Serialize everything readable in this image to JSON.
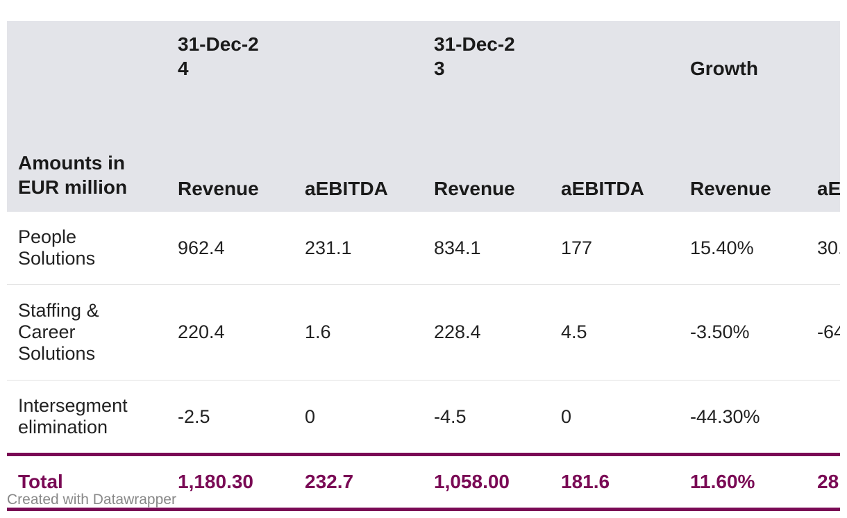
{
  "table": {
    "header": {
      "corner_label": "Amounts in EUR million",
      "groups": [
        "31-Dec-24",
        "31-Dec-23",
        "Growth"
      ],
      "columns": [
        "Revenue",
        "aEBITDA",
        "Revenue",
        "aEBITDA",
        "Revenue",
        "aE"
      ]
    },
    "rows": [
      {
        "label": "People Solutions",
        "cells": [
          "962.4",
          "231.1",
          "834.1",
          "177",
          "15.40%",
          "30."
        ]
      },
      {
        "label": "Staffing & Career Solutions",
        "cells": [
          "220.4",
          "1.6",
          "228.4",
          "4.5",
          "-3.50%",
          "-64"
        ]
      },
      {
        "label": "Intersegment elimination",
        "cells": [
          "-2.5",
          "0",
          "-4.5",
          "0",
          "-44.30%",
          ""
        ]
      }
    ],
    "total": {
      "label": "Total",
      "cells": [
        "1,180.30",
        "232.7",
        "1,058.00",
        "181.6",
        "11.60%",
        "28"
      ]
    }
  },
  "footer": {
    "credit": "Created with Datawrapper"
  },
  "colors": {
    "header_background": "#e3e4e9",
    "total_accent": "#7a0a55",
    "row_divider": "#e2e2e2",
    "credit_text": "#888888"
  },
  "chart_data": {
    "type": "table",
    "columns": [
      "Amounts in EUR million",
      "31-Dec-24 Revenue",
      "31-Dec-24 aEBITDA",
      "31-Dec-23 Revenue",
      "31-Dec-23 aEBITDA",
      "Growth Revenue",
      "Growth aE"
    ],
    "rows": [
      [
        "People Solutions",
        "962.4",
        "231.1",
        "834.1",
        "177",
        "15.40%",
        "30."
      ],
      [
        "Staffing & Career Solutions",
        "220.4",
        "1.6",
        "228.4",
        "4.5",
        "-3.50%",
        "-64"
      ],
      [
        "Intersegment elimination",
        "-2.5",
        "0",
        "-4.5",
        "0",
        "-44.30%",
        ""
      ],
      [
        "Total",
        "1,180.30",
        "232.7",
        "1,058.00",
        "181.6",
        "11.60%",
        "28"
      ]
    ]
  }
}
